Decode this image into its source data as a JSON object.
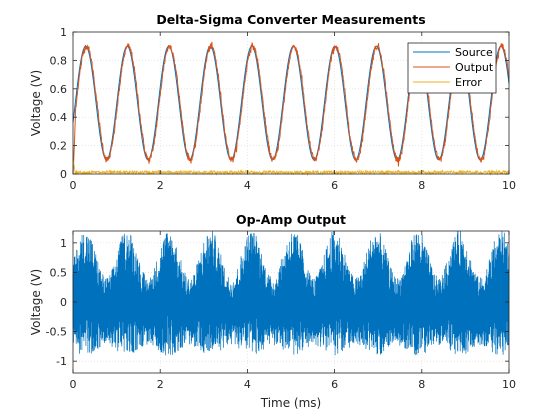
{
  "figure": {
    "background": "#ffffff"
  },
  "chart_data": [
    {
      "type": "line",
      "title": "Delta-Sigma Converter Measurements",
      "xlabel": "",
      "ylabel": "Voltage (V)",
      "xlim": [
        0,
        10
      ],
      "ylim": [
        0,
        1
      ],
      "x_ticks": [
        0,
        2,
        4,
        6,
        8,
        10
      ],
      "y_ticks": [
        0,
        0.2,
        0.4,
        0.6,
        0.8,
        1
      ],
      "y_tick_labels": [
        "0",
        "0.2",
        "0.4",
        "0.6",
        "0.8",
        "1"
      ],
      "grid": true,
      "legend": {
        "position": "top-right",
        "entries": [
          "Source",
          "Output",
          "Error"
        ]
      },
      "series": [
        {
          "name": "Source",
          "color": "#0072bd",
          "x_range": [
            0,
            10
          ],
          "function": "0.5 + 0.4*sin(2*pi*1.05*x - 0.35)",
          "note_samples": 10
        },
        {
          "name": "Output",
          "color": "#d95319",
          "x_range": [
            0,
            10
          ],
          "function": "Source + small quantization ripple, starting near 0 at x=0"
        },
        {
          "name": "Error",
          "color": "#edb120",
          "x_range": [
            0,
            10
          ],
          "function": "noise around 0.01 with spike ~0.1 near x=0"
        }
      ]
    },
    {
      "type": "line",
      "title": "Op-Amp Output",
      "xlabel": "Time (ms)",
      "ylabel": "Voltage (V)",
      "xlim": [
        0,
        10
      ],
      "ylim": [
        -1.2,
        1.2
      ],
      "x_ticks": [
        0,
        2,
        4,
        6,
        8,
        10
      ],
      "y_ticks": [
        -1,
        -0.5,
        0,
        0.5,
        1
      ],
      "y_tick_labels": [
        "-1",
        "-0.5",
        "0",
        "0.5",
        "1"
      ],
      "grid": true,
      "series": [
        {
          "color": "#0072bd",
          "x_range": [
            0,
            10
          ],
          "function": "noise-modulated sine: amplitude 0.55..1.15, period ~1.05 ms, centered at 0"
        }
      ]
    }
  ]
}
